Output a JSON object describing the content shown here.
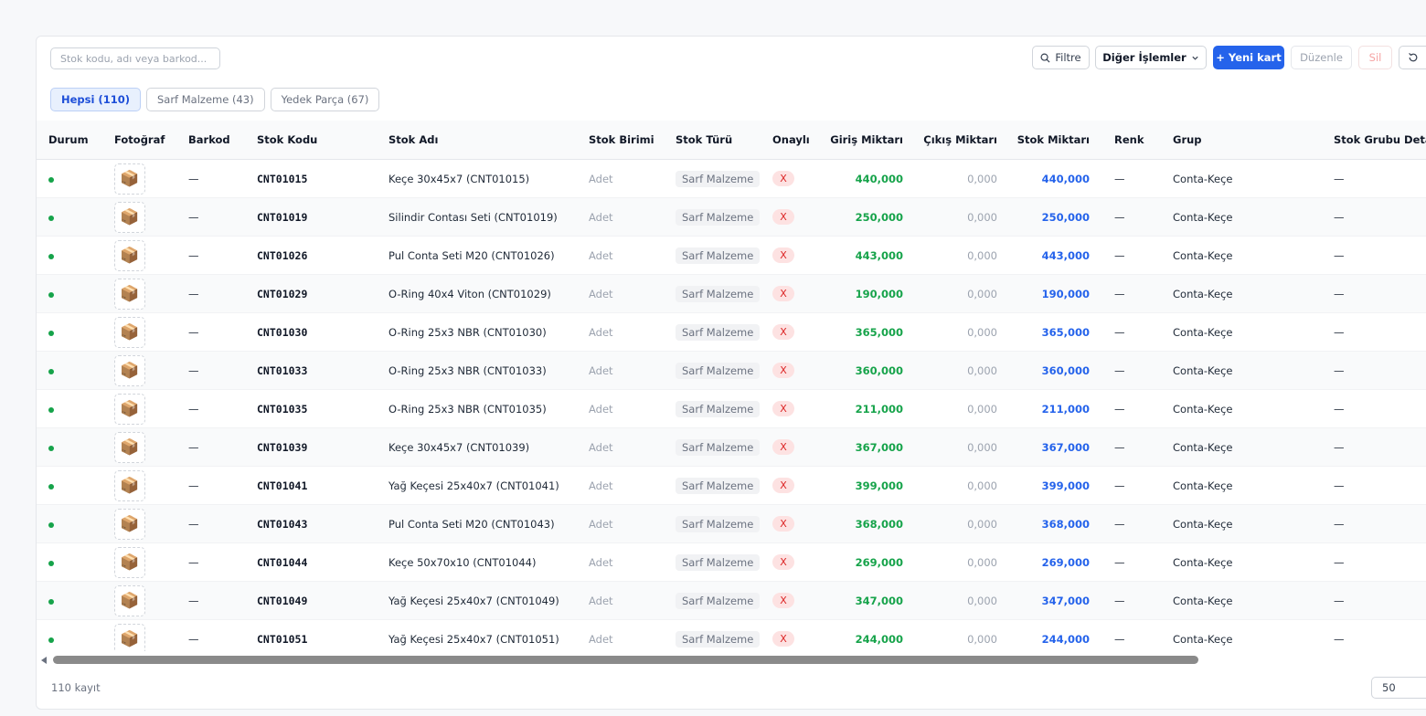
{
  "toolbar": {
    "search_placeholder": "Stok kodu, adı veya barkod...",
    "filter_label": "Filtre",
    "other_actions_label": "Diğer İşlemler",
    "new_card_label": "+ Yeni kart",
    "edit_label": "Düzenle",
    "delete_label": "Sil"
  },
  "tabs": [
    {
      "label": "Hepsi (110)",
      "active": true
    },
    {
      "label": "Sarf Malzeme (43)",
      "active": false
    },
    {
      "label": "Yedek Parça (67)",
      "active": false
    }
  ],
  "columns": [
    "Durum",
    "Fotoğraf",
    "Barkod",
    "Stok Kodu",
    "Stok Adı",
    "Stok Birimi",
    "Stok Türü",
    "Onaylı",
    "Giriş Miktarı",
    "Çıkış Miktarı",
    "Stok Miktarı",
    "Renk",
    "Grup",
    "Stok Grubu Detay"
  ],
  "rows": [
    {
      "barkod": "—",
      "kod": "CNT01015",
      "ad": "Keçe 30x45x7 (CNT01015)",
      "birim": "Adet",
      "tur": "Sarf Malzeme",
      "onayli": "X",
      "giris": "440,000",
      "cikis": "0,000",
      "stok": "440,000",
      "renk": "—",
      "grup": "Conta-Keçe",
      "detay": "—"
    },
    {
      "barkod": "—",
      "kod": "CNT01019",
      "ad": "Silindir Contası Seti (CNT01019)",
      "birim": "Adet",
      "tur": "Sarf Malzeme",
      "onayli": "X",
      "giris": "250,000",
      "cikis": "0,000",
      "stok": "250,000",
      "renk": "—",
      "grup": "Conta-Keçe",
      "detay": "—"
    },
    {
      "barkod": "—",
      "kod": "CNT01026",
      "ad": "Pul Conta Seti M20 (CNT01026)",
      "birim": "Adet",
      "tur": "Sarf Malzeme",
      "onayli": "X",
      "giris": "443,000",
      "cikis": "0,000",
      "stok": "443,000",
      "renk": "—",
      "grup": "Conta-Keçe",
      "detay": "—"
    },
    {
      "barkod": "—",
      "kod": "CNT01029",
      "ad": "O-Ring 40x4 Viton (CNT01029)",
      "birim": "Adet",
      "tur": "Sarf Malzeme",
      "onayli": "X",
      "giris": "190,000",
      "cikis": "0,000",
      "stok": "190,000",
      "renk": "—",
      "grup": "Conta-Keçe",
      "detay": "—"
    },
    {
      "barkod": "—",
      "kod": "CNT01030",
      "ad": "O-Ring 25x3 NBR (CNT01030)",
      "birim": "Adet",
      "tur": "Sarf Malzeme",
      "onayli": "X",
      "giris": "365,000",
      "cikis": "0,000",
      "stok": "365,000",
      "renk": "—",
      "grup": "Conta-Keçe",
      "detay": "—"
    },
    {
      "barkod": "—",
      "kod": "CNT01033",
      "ad": "O-Ring 25x3 NBR (CNT01033)",
      "birim": "Adet",
      "tur": "Sarf Malzeme",
      "onayli": "X",
      "giris": "360,000",
      "cikis": "0,000",
      "stok": "360,000",
      "renk": "—",
      "grup": "Conta-Keçe",
      "detay": "—"
    },
    {
      "barkod": "—",
      "kod": "CNT01035",
      "ad": "O-Ring 25x3 NBR (CNT01035)",
      "birim": "Adet",
      "tur": "Sarf Malzeme",
      "onayli": "X",
      "giris": "211,000",
      "cikis": "0,000",
      "stok": "211,000",
      "renk": "—",
      "grup": "Conta-Keçe",
      "detay": "—"
    },
    {
      "barkod": "—",
      "kod": "CNT01039",
      "ad": "Keçe 30x45x7 (CNT01039)",
      "birim": "Adet",
      "tur": "Sarf Malzeme",
      "onayli": "X",
      "giris": "367,000",
      "cikis": "0,000",
      "stok": "367,000",
      "renk": "—",
      "grup": "Conta-Keçe",
      "detay": "—"
    },
    {
      "barkod": "—",
      "kod": "CNT01041",
      "ad": "Yağ Keçesi 25x40x7 (CNT01041)",
      "birim": "Adet",
      "tur": "Sarf Malzeme",
      "onayli": "X",
      "giris": "399,000",
      "cikis": "0,000",
      "stok": "399,000",
      "renk": "—",
      "grup": "Conta-Keçe",
      "detay": "—"
    },
    {
      "barkod": "—",
      "kod": "CNT01043",
      "ad": "Pul Conta Seti M20 (CNT01043)",
      "birim": "Adet",
      "tur": "Sarf Malzeme",
      "onayli": "X",
      "giris": "368,000",
      "cikis": "0,000",
      "stok": "368,000",
      "renk": "—",
      "grup": "Conta-Keçe",
      "detay": "—"
    },
    {
      "barkod": "—",
      "kod": "CNT01044",
      "ad": "Keçe 50x70x10 (CNT01044)",
      "birim": "Adet",
      "tur": "Sarf Malzeme",
      "onayli": "X",
      "giris": "269,000",
      "cikis": "0,000",
      "stok": "269,000",
      "renk": "—",
      "grup": "Conta-Keçe",
      "detay": "—"
    },
    {
      "barkod": "—",
      "kod": "CNT01049",
      "ad": "Yağ Keçesi 25x40x7 (CNT01049)",
      "birim": "Adet",
      "tur": "Sarf Malzeme",
      "onayli": "X",
      "giris": "347,000",
      "cikis": "0,000",
      "stok": "347,000",
      "renk": "—",
      "grup": "Conta-Keçe",
      "detay": "—"
    },
    {
      "barkod": "—",
      "kod": "CNT01051",
      "ad": "Yağ Keçesi 25x40x7 (CNT01051)",
      "birim": "Adet",
      "tur": "Sarf Malzeme",
      "onayli": "X",
      "giris": "244,000",
      "cikis": "0,000",
      "stok": "244,000",
      "renk": "—",
      "grup": "Conta-Keçe",
      "detay": "—"
    }
  ],
  "footer": {
    "count_label": "110 kayıt",
    "page_size": "50"
  },
  "colors": {
    "primary": "#2563eb",
    "positive": "#16a34a",
    "danger": "#dc2626"
  },
  "icons": {
    "status": "status-dot-icon",
    "photo": "package-icon",
    "filter": "search-icon",
    "dropdown": "chevron-down-icon",
    "refresh": "refresh-icon"
  }
}
